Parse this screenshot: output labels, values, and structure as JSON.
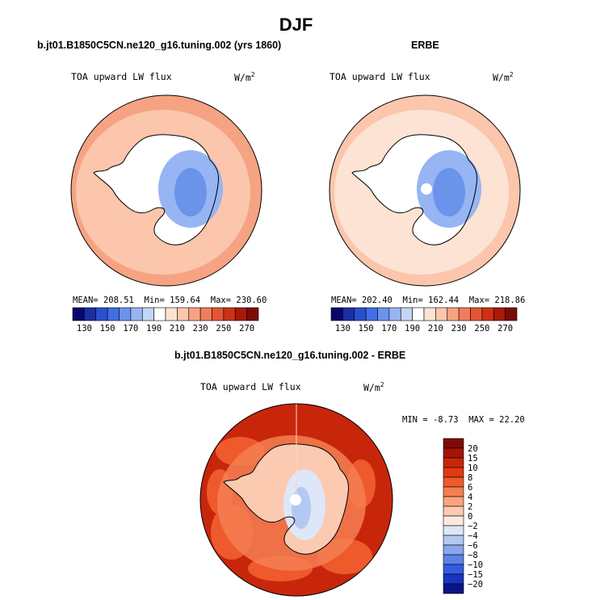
{
  "figure": {
    "title": "DJF"
  },
  "chart_data": [
    {
      "type": "heatmap",
      "title": "b.jt01.B1850C5CN.ne120_g16.tuning.002 (yrs 1860)",
      "variable": "TOA upward LW flux",
      "units_label": "W/m",
      "units_exp": "2",
      "stats": {
        "mean_label": "MEAN=",
        "mean": "208.51",
        "min_label": "Min=",
        "min": "159.64",
        "max_label": "Max=",
        "max": "230.60"
      },
      "colorbar_levels": [
        130,
        150,
        170,
        190,
        210,
        230,
        250,
        270
      ],
      "colorbar_colors": [
        "#08086b",
        "#1b2ea3",
        "#2c4fd0",
        "#3f6fe6",
        "#6a93ec",
        "#96b5f2",
        "#c3d6f7",
        "#ffffff",
        "#fde3d3",
        "#fbc6ac",
        "#f6a383",
        "#ef7d5c",
        "#e35535",
        "#cc3115",
        "#a9190a",
        "#7d0a05"
      ],
      "zones": [
        {
          "name": "southern-ocean",
          "value": 222
        },
        {
          "name": "sea-ice-ring",
          "value": 215
        },
        {
          "name": "coastal-antarctica",
          "value": 195
        },
        {
          "name": "east-antarctic-plateau",
          "value": 172
        },
        {
          "name": "plateau-interior",
          "value": 160
        }
      ]
    },
    {
      "type": "heatmap",
      "title": "ERBE",
      "variable": "TOA upward LW flux",
      "units_label": "W/m",
      "units_exp": "2",
      "stats": {
        "mean_label": "MEAN=",
        "mean": "202.40",
        "min_label": "Min=",
        "min": "162.44",
        "max_label": "Max=",
        "max": "218.86"
      },
      "colorbar_levels": [
        130,
        150,
        170,
        190,
        210,
        230,
        250,
        270
      ],
      "colorbar_colors": [
        "#08086b",
        "#1b2ea3",
        "#2c4fd0",
        "#3f6fe6",
        "#6a93ec",
        "#96b5f2",
        "#c3d6f7",
        "#ffffff",
        "#fde3d3",
        "#fbc6ac",
        "#f6a383",
        "#ef7d5c",
        "#e35535",
        "#cc3115",
        "#a9190a",
        "#7d0a05"
      ],
      "zones": [
        {
          "name": "southern-ocean",
          "value": 214
        },
        {
          "name": "sea-ice-ring",
          "value": 206
        },
        {
          "name": "coastal-antarctica",
          "value": 190
        },
        {
          "name": "east-antarctic-plateau",
          "value": 176
        },
        {
          "name": "plateau-interior",
          "value": 165
        }
      ],
      "missing_pole": true
    },
    {
      "type": "heatmap",
      "title": "b.jt01.B1850C5CN.ne120_g16.tuning.002 - ERBE",
      "variable": "TOA upward LW flux",
      "units_label": "W/m",
      "units_exp": "2",
      "stats": {
        "min_label": "MIN =",
        "min": "-8.73",
        "max_label": "MAX =",
        "max": "22.20"
      },
      "colorbar_levels": [
        "20",
        "15",
        "10",
        "8",
        "6",
        "4",
        "2",
        "0",
        "−2",
        "−4",
        "−6",
        "−8",
        "−10",
        "−15",
        "−20"
      ],
      "colorbar_colors": [
        "#7f0a04",
        "#a41506",
        "#c8260b",
        "#e03a12",
        "#ef5a2c",
        "#f57f52",
        "#f9a47e",
        "#fccab0",
        "#fdeadc",
        "#dde7f8",
        "#b3c8f3",
        "#86a6ee",
        "#5a82e8",
        "#345ce2",
        "#1a34c2",
        "#0a1486"
      ],
      "zones": [
        {
          "name": "southern-ocean",
          "value": 11
        },
        {
          "name": "ocean-patches",
          "value": 7
        },
        {
          "name": "sea-ice-ring",
          "value": 4
        },
        {
          "name": "coastal-antarctica",
          "value": 1
        },
        {
          "name": "plateau",
          "value": -3
        },
        {
          "name": "plateau-interior",
          "value": -6
        }
      ],
      "missing_pole": true
    }
  ]
}
